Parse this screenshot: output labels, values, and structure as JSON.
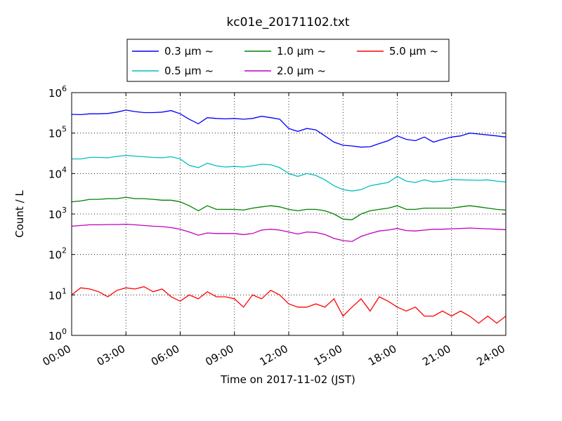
{
  "chart_data": {
    "type": "line",
    "title": "kc01e_20171102.txt",
    "xlabel": "Time on 2017-11-02 (JST)",
    "ylabel": "Count / L",
    "yscale": "log",
    "ylim": [
      1,
      1000000
    ],
    "xlim": [
      "00:00",
      "24:00"
    ],
    "xticks": [
      "00:00",
      "03:00",
      "06:00",
      "09:00",
      "12:00",
      "15:00",
      "18:00",
      "21:00",
      "24:00"
    ],
    "yticks": [
      {
        "base": "10",
        "exp": "0"
      },
      {
        "base": "10",
        "exp": "1"
      },
      {
        "base": "10",
        "exp": "2"
      },
      {
        "base": "10",
        "exp": "3"
      },
      {
        "base": "10",
        "exp": "4"
      },
      {
        "base": "10",
        "exp": "5"
      },
      {
        "base": "10",
        "exp": "6"
      }
    ],
    "grid": true,
    "legend_position": "top-center",
    "x": [
      "00:00",
      "00:30",
      "01:00",
      "01:30",
      "02:00",
      "02:30",
      "03:00",
      "03:30",
      "04:00",
      "04:30",
      "05:00",
      "05:30",
      "06:00",
      "06:30",
      "07:00",
      "07:30",
      "08:00",
      "08:30",
      "09:00",
      "09:30",
      "10:00",
      "10:30",
      "11:00",
      "11:30",
      "12:00",
      "12:30",
      "13:00",
      "13:30",
      "14:00",
      "14:30",
      "15:00",
      "15:30",
      "16:00",
      "16:30",
      "17:00",
      "17:30",
      "18:00",
      "18:30",
      "19:00",
      "19:30",
      "20:00",
      "20:30",
      "21:00",
      "21:30",
      "22:00",
      "22:30",
      "23:00",
      "23:30",
      "24:00"
    ],
    "series": [
      {
        "name": "0.3 μm ~",
        "color": "#0000ff",
        "values": [
          290000,
          285000,
          300000,
          300000,
          305000,
          330000,
          370000,
          340000,
          320000,
          320000,
          330000,
          360000,
          300000,
          220000,
          170000,
          240000,
          230000,
          225000,
          230000,
          220000,
          230000,
          260000,
          240000,
          220000,
          130000,
          110000,
          130000,
          120000,
          85000,
          60000,
          50000,
          48000,
          45000,
          46000,
          55000,
          65000,
          85000,
          70000,
          65000,
          80000,
          60000,
          70000,
          80000,
          85000,
          100000,
          95000,
          90000,
          85000,
          80000
        ]
      },
      {
        "name": "0.5 μm ~",
        "color": "#00bfbf",
        "values": [
          23000,
          23000,
          25000,
          25000,
          24500,
          26500,
          28000,
          27000,
          26000,
          25000,
          24500,
          26000,
          23000,
          16000,
          14000,
          18000,
          15500,
          14500,
          15000,
          14500,
          15500,
          17000,
          16500,
          14000,
          10000,
          8500,
          10000,
          9000,
          7000,
          5000,
          4000,
          3700,
          4000,
          5000,
          5500,
          6000,
          8500,
          6500,
          6000,
          7000,
          6200,
          6500,
          7200,
          7000,
          6900,
          6800,
          7000,
          6500,
          6200
        ]
      },
      {
        "name": "1.0 μm ~",
        "color": "#008000",
        "values": [
          2000,
          2100,
          2300,
          2300,
          2400,
          2400,
          2600,
          2400,
          2400,
          2300,
          2200,
          2200,
          2000,
          1600,
          1200,
          1600,
          1300,
          1300,
          1300,
          1250,
          1400,
          1500,
          1600,
          1500,
          1300,
          1200,
          1300,
          1300,
          1200,
          1000,
          750,
          720,
          1000,
          1200,
          1300,
          1400,
          1600,
          1300,
          1300,
          1400,
          1400,
          1400,
          1400,
          1500,
          1600,
          1500,
          1400,
          1300,
          1250
        ]
      },
      {
        "name": "2.0 μm ~",
        "color": "#bf00bf",
        "values": [
          500,
          520,
          540,
          540,
          550,
          550,
          560,
          540,
          520,
          500,
          490,
          460,
          420,
          360,
          300,
          340,
          330,
          330,
          330,
          310,
          330,
          400,
          420,
          400,
          360,
          320,
          360,
          350,
          310,
          250,
          220,
          210,
          280,
          330,
          380,
          400,
          440,
          390,
          380,
          400,
          420,
          420,
          430,
          440,
          450,
          440,
          430,
          420,
          410
        ]
      },
      {
        "name": "5.0 μm ~",
        "color": "#ff0000",
        "values": [
          10,
          15,
          14,
          12,
          9,
          13,
          15,
          14,
          16,
          12,
          14,
          9,
          7,
          10,
          8,
          12,
          9,
          9,
          8,
          5,
          10,
          8,
          13,
          10,
          6,
          5,
          5,
          6,
          5,
          8,
          3,
          5,
          8,
          4,
          9,
          7,
          5,
          4,
          5,
          3,
          3,
          4,
          3,
          4,
          3,
          2,
          3,
          2,
          3
        ]
      }
    ]
  }
}
